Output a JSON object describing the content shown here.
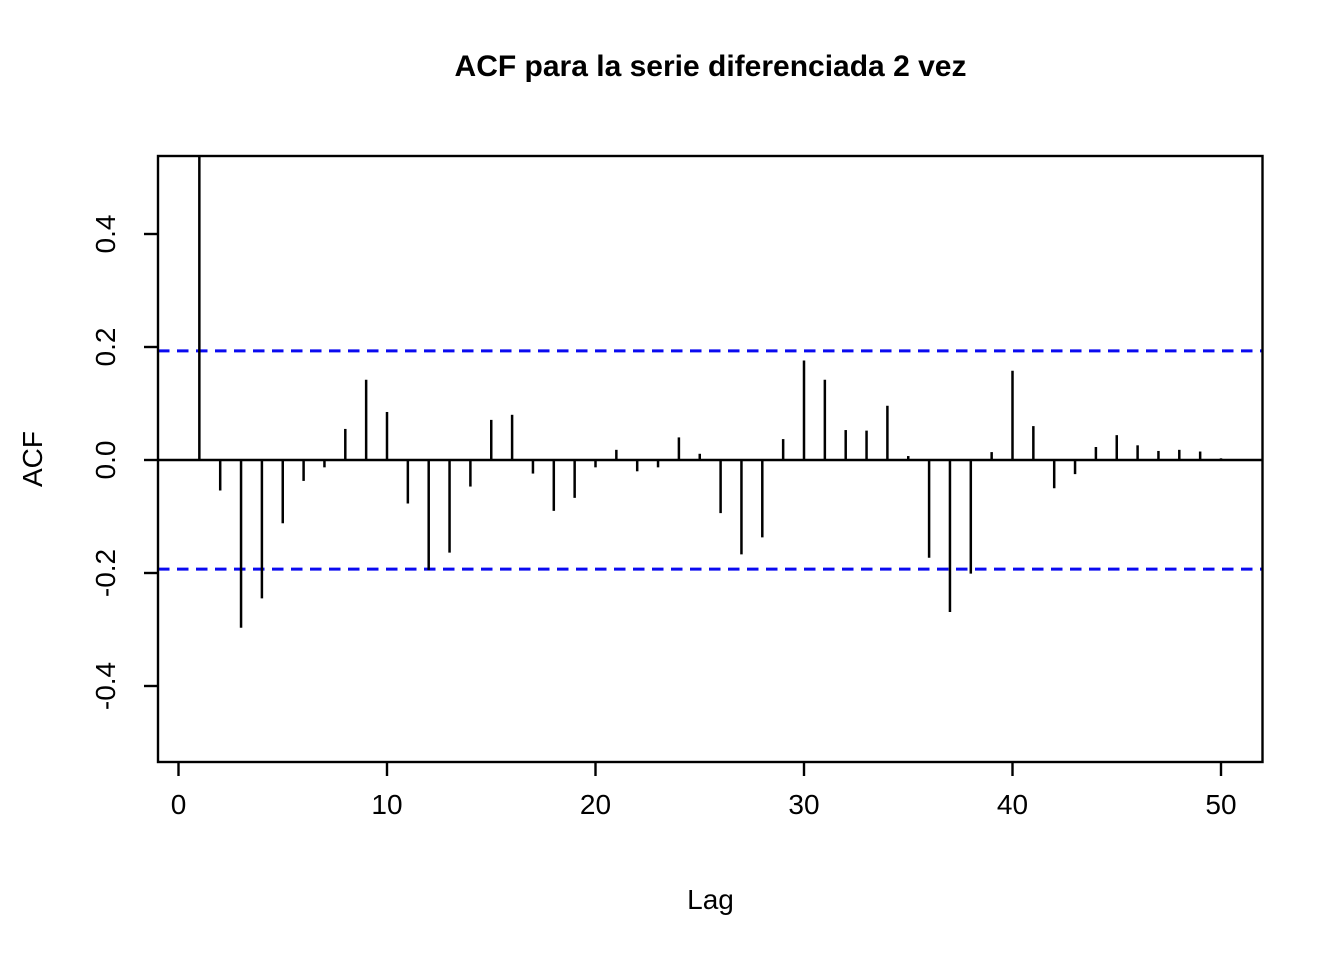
{
  "title": "ACF para la serie diferenciada 2 vez",
  "colors": {
    "background": "#ffffff",
    "bars": "#000000",
    "frame": "#000000",
    "confidence_band": "#0a0af0",
    "text": "#000000"
  },
  "chart_data": {
    "type": "bar",
    "subtype": "acf-stem-plot",
    "title": "ACF para la serie diferenciada 2 vez",
    "xlabel": "Lag",
    "ylabel": "ACF",
    "x": [
      1,
      2,
      3,
      4,
      5,
      6,
      7,
      8,
      9,
      10,
      11,
      12,
      13,
      14,
      15,
      16,
      17,
      18,
      19,
      20,
      21,
      22,
      23,
      24,
      25,
      26,
      27,
      28,
      29,
      30,
      31,
      32,
      33,
      34,
      35,
      36,
      37,
      38,
      39,
      40,
      41,
      42,
      43,
      44,
      45,
      46,
      47,
      48,
      49,
      50
    ],
    "values": [
      1.0,
      -0.054,
      -0.297,
      -0.245,
      -0.112,
      -0.037,
      -0.013,
      0.055,
      0.142,
      0.085,
      -0.077,
      -0.195,
      -0.164,
      -0.047,
      0.071,
      0.08,
      -0.024,
      -0.09,
      -0.067,
      -0.013,
      0.018,
      -0.02,
      -0.013,
      0.04,
      0.011,
      -0.094,
      -0.167,
      -0.137,
      0.037,
      0.176,
      0.142,
      0.053,
      0.052,
      0.096,
      0.007,
      -0.173,
      -0.269,
      -0.201,
      0.014,
      0.158,
      0.06,
      -0.05,
      -0.025,
      0.023,
      0.044,
      0.026,
      0.016,
      0.018,
      0.015,
      0.003
    ],
    "first_bar_clipped": true,
    "xticks": [
      0,
      10,
      20,
      30,
      40,
      50
    ],
    "xtick_labels": [
      "0",
      "10",
      "20",
      "30",
      "40",
      "50"
    ],
    "yticks": [
      -0.4,
      -0.2,
      0.0,
      0.2,
      0.4
    ],
    "ytick_labels": [
      "-0.4",
      "-0.2",
      "0.0",
      "0.2",
      "0.4"
    ],
    "xlim": [
      -1.0,
      51.9
    ],
    "ylim": [
      -0.537,
      0.537
    ],
    "confidence_band": 0.195,
    "confidence_band_style": "dashed",
    "zero_line": 0,
    "grid": false,
    "legend": false
  }
}
